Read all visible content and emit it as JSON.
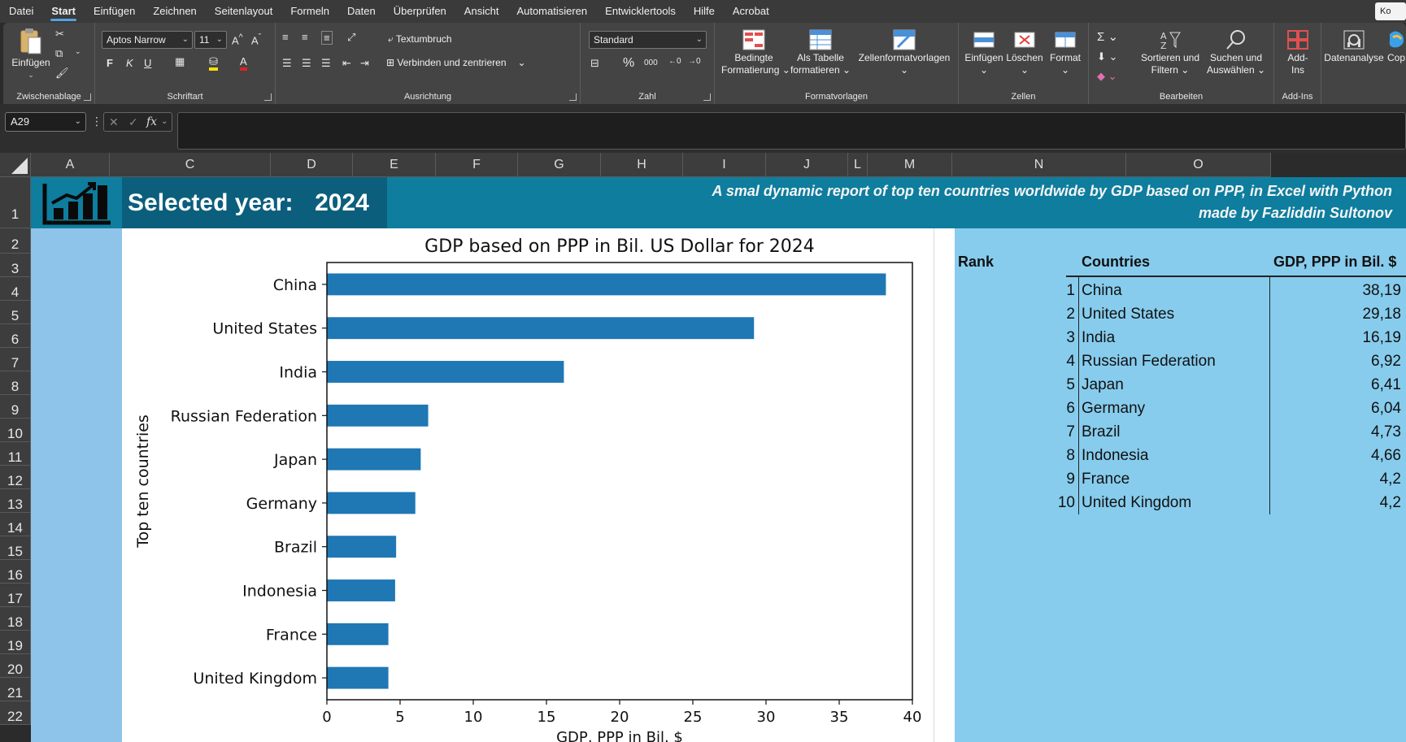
{
  "menu": {
    "items": [
      "Datei",
      "Start",
      "Einfügen",
      "Zeichnen",
      "Seitenlayout",
      "Formeln",
      "Daten",
      "Überprüfen",
      "Ansicht",
      "Automatisieren",
      "Entwicklertools",
      "Hilfe",
      "Acrobat"
    ],
    "active": "Start",
    "corner_label": "Ko"
  },
  "ribbon": {
    "clipboard": {
      "paste_label": "Einfügen",
      "group_label": "Zwischenablage"
    },
    "font": {
      "font_name": "Aptos Narrow",
      "font_size": "11",
      "group_label": "Schriftart",
      "bold": "F",
      "italic": "K",
      "underline": "U"
    },
    "alignment": {
      "wrap_label": "Textumbruch",
      "merge_label": "Verbinden und zentrieren",
      "group_label": "Ausrichtung"
    },
    "number": {
      "format": "Standard",
      "group_label": "Zahl"
    },
    "styles": {
      "conditional_label_1": "Bedingte",
      "conditional_label_2": "Formatierung",
      "table_label_1": "Als Tabelle",
      "table_label_2": "formatieren",
      "cellstyles_label": "Zellenformatvorlagen",
      "group_label": "Formatvorlagen"
    },
    "cells": {
      "insert_label": "Einfügen",
      "delete_label": "Löschen",
      "format_label": "Format",
      "group_label": "Zellen"
    },
    "editing": {
      "sort_label_1": "Sortieren und",
      "sort_label_2": "Filtern",
      "find_label_1": "Suchen und",
      "find_label_2": "Auswählen",
      "group_label": "Bearbeiten"
    },
    "addins": {
      "label_1": "Add-",
      "label_2": "Ins",
      "group_label": "Add-Ins"
    },
    "analysis": {
      "label": "Datenanalyse",
      "copilot_label": "Cop"
    }
  },
  "formula_bar": {
    "name_box": "A29",
    "fx": "fx"
  },
  "columns": [
    "A",
    "C",
    "D",
    "E",
    "F",
    "G",
    "H",
    "I",
    "J",
    "L",
    "M",
    "N",
    "O"
  ],
  "rows": [
    "1",
    "2",
    "3",
    "4",
    "5",
    "6",
    "7",
    "8",
    "9",
    "10",
    "11",
    "12",
    "13",
    "14",
    "15",
    "16",
    "17",
    "18",
    "19",
    "20",
    "21",
    "22"
  ],
  "banner": {
    "selected_label": "Selected year:",
    "year": "2024",
    "title_line1": "A smal dynamic report of top ten countries worldwide by GDP based on PPP, in Excel with Python",
    "title_line2": "made by Fazliddin Sultonov"
  },
  "table": {
    "headers": {
      "rank": "Rank",
      "country": "Countries",
      "gdp": "GDP, PPP in Bil. $"
    },
    "rows": [
      {
        "rank": "1",
        "country": "China",
        "gdp": "38,19"
      },
      {
        "rank": "2",
        "country": "United States",
        "gdp": "29,18"
      },
      {
        "rank": "3",
        "country": "India",
        "gdp": "16,19"
      },
      {
        "rank": "4",
        "country": "Russian Federation",
        "gdp": "6,92"
      },
      {
        "rank": "5",
        "country": "Japan",
        "gdp": "6,41"
      },
      {
        "rank": "6",
        "country": "Germany",
        "gdp": "6,04"
      },
      {
        "rank": "7",
        "country": "Brazil",
        "gdp": "4,73"
      },
      {
        "rank": "8",
        "country": "Indonesia",
        "gdp": "4,66"
      },
      {
        "rank": "9",
        "country": "France",
        "gdp": "4,2"
      },
      {
        "rank": "10",
        "country": "United Kingdom",
        "gdp": "4,2"
      }
    ]
  },
  "chart_data": {
    "type": "bar",
    "orientation": "horizontal",
    "title": "GDP based on PPP in Bil. US Dollar for 2024",
    "xlabel": "GDP, PPP in Bil. $",
    "ylabel": "Top ten countries",
    "categories": [
      "China",
      "United States",
      "India",
      "Russian Federation",
      "Japan",
      "Germany",
      "Brazil",
      "Indonesia",
      "France",
      "United Kingdom"
    ],
    "values": [
      38.19,
      29.18,
      16.19,
      6.92,
      6.41,
      6.04,
      4.73,
      4.66,
      4.2,
      4.2
    ],
    "xlim": [
      0,
      40
    ],
    "xticks": [
      "0",
      "5",
      "10",
      "15",
      "20",
      "25",
      "30",
      "35",
      "40"
    ],
    "bar_color": "#1f77b4",
    "grid": false
  },
  "colors": {
    "banner": "#0e7d9e",
    "banner_dark": "#0b5f7c",
    "table_panel": "#87cced",
    "column_a": "#8ec4ea"
  }
}
